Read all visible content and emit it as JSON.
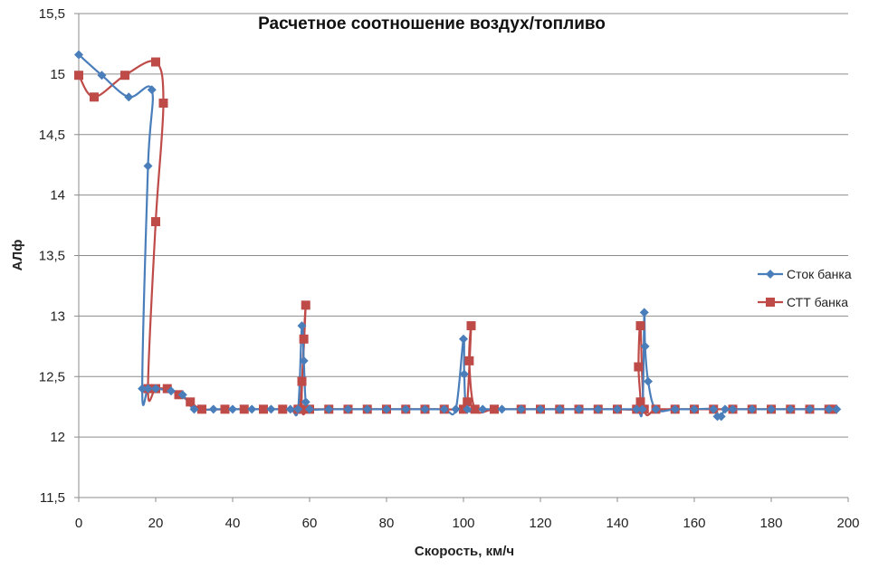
{
  "chart_data": {
    "type": "scatter",
    "title": "Расчетное соотношение воздух/топливо",
    "xlabel": "Скорость, км/ч",
    "ylabel": "АЛф",
    "xlim": [
      0,
      200
    ],
    "ylim": [
      11.5,
      15.5
    ],
    "x_ticks": [
      "0",
      "20",
      "40",
      "60",
      "80",
      "100",
      "120",
      "140",
      "160",
      "180",
      "200"
    ],
    "y_ticks": [
      "11,5",
      "12",
      "12,5",
      "13",
      "13,5",
      "14",
      "14,5",
      "15",
      "15,5"
    ],
    "grid": "horizontal",
    "legend": "right",
    "series": [
      {
        "name": "Сток банка",
        "color": "#4a7ebb",
        "marker": "diamond",
        "x": [
          0,
          6,
          13,
          19,
          18,
          16.5,
          18,
          20,
          24,
          27,
          30,
          35,
          40,
          45,
          50,
          55,
          57,
          58,
          58.5,
          59,
          60,
          65,
          70,
          75,
          80,
          85,
          90,
          95,
          98,
          100,
          100.2,
          101,
          105,
          110,
          115,
          120,
          125,
          130,
          135,
          140,
          145,
          146.5,
          147,
          147.2,
          148,
          150,
          155,
          160,
          165,
          166,
          167,
          168,
          170,
          175,
          180,
          185,
          190,
          195,
          197
        ],
        "y": [
          15.16,
          14.99,
          14.81,
          14.87,
          14.24,
          12.4,
          12.4,
          12.4,
          12.38,
          12.35,
          12.23,
          12.23,
          12.23,
          12.23,
          12.23,
          12.23,
          12.23,
          12.92,
          12.63,
          12.29,
          12.23,
          12.23,
          12.23,
          12.23,
          12.23,
          12.23,
          12.23,
          12.23,
          12.23,
          12.81,
          12.52,
          12.23,
          12.23,
          12.23,
          12.23,
          12.23,
          12.23,
          12.23,
          12.23,
          12.23,
          12.23,
          12.23,
          13.03,
          12.75,
          12.46,
          12.23,
          12.23,
          12.23,
          12.23,
          12.17,
          12.17,
          12.23,
          12.23,
          12.23,
          12.23,
          12.23,
          12.23,
          12.23,
          12.23
        ]
      },
      {
        "name": "СТТ банка",
        "color": "#be4b48",
        "marker": "square",
        "x": [
          0,
          4,
          12,
          20,
          22,
          20,
          18,
          20,
          23,
          26,
          29,
          32,
          38,
          43,
          48,
          53,
          57,
          58,
          59,
          58.5,
          58,
          60,
          65,
          70,
          75,
          80,
          85,
          90,
          95,
          100,
          101,
          102,
          101.5,
          103,
          108,
          115,
          120,
          125,
          130,
          135,
          140,
          145,
          146,
          145.5,
          146,
          147,
          150,
          155,
          160,
          165,
          170,
          175,
          180,
          185,
          190,
          195,
          196
        ],
        "y": [
          14.99,
          14.81,
          14.99,
          15.1,
          14.76,
          13.78,
          12.4,
          12.4,
          12.4,
          12.35,
          12.29,
          12.23,
          12.23,
          12.23,
          12.23,
          12.23,
          12.23,
          12.46,
          13.09,
          12.81,
          12.23,
          12.23,
          12.23,
          12.23,
          12.23,
          12.23,
          12.23,
          12.23,
          12.23,
          12.23,
          12.29,
          12.92,
          12.63,
          12.23,
          12.23,
          12.23,
          12.23,
          12.23,
          12.23,
          12.23,
          12.23,
          12.23,
          12.29,
          12.58,
          12.92,
          12.23,
          12.23,
          12.23,
          12.23,
          12.23,
          12.23,
          12.23,
          12.23,
          12.23,
          12.23,
          12.23,
          12.23
        ]
      }
    ]
  }
}
